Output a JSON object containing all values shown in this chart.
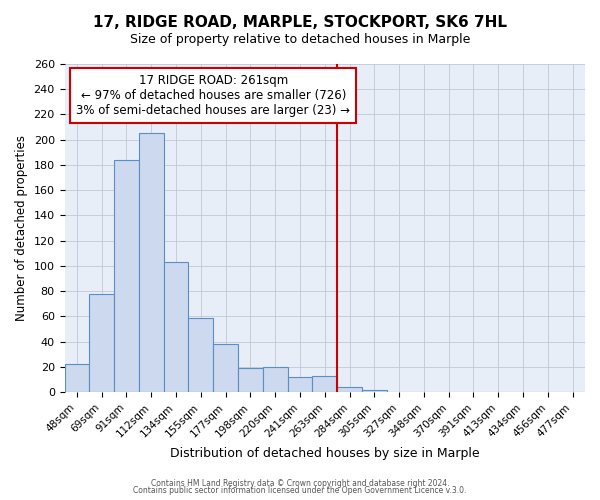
{
  "title": "17, RIDGE ROAD, MARPLE, STOCKPORT, SK6 7HL",
  "subtitle": "Size of property relative to detached houses in Marple",
  "xlabel": "Distribution of detached houses by size in Marple",
  "ylabel": "Number of detached properties",
  "footer_line1": "Contains HM Land Registry data © Crown copyright and database right 2024.",
  "footer_line2": "Contains public sector information licensed under the Open Government Licence v.3.0.",
  "annotation_line1": "17 RIDGE ROAD: 261sqm",
  "annotation_line2": "← 97% of detached houses are smaller (726)",
  "annotation_line3": "3% of semi-detached houses are larger (23) →",
  "bar_color": "#cdd9ee",
  "bar_edge_color": "#5b8ec4",
  "highlight_color": "#cc0000",
  "annotation_box_color": "#ffffff",
  "annotation_box_edge": "#cc0000",
  "categories": [
    "48sqm",
    "69sqm",
    "91sqm",
    "112sqm",
    "134sqm",
    "155sqm",
    "177sqm",
    "198sqm",
    "220sqm",
    "241sqm",
    "263sqm",
    "284sqm",
    "305sqm",
    "327sqm",
    "348sqm",
    "370sqm",
    "391sqm",
    "413sqm",
    "434sqm",
    "456sqm",
    "477sqm"
  ],
  "values": [
    22,
    78,
    184,
    205,
    103,
    59,
    38,
    19,
    20,
    12,
    13,
    4,
    2,
    0,
    0,
    0,
    0,
    0,
    0,
    0,
    0
  ],
  "highlight_index": 10,
  "ylim": [
    0,
    260
  ],
  "yticks": [
    0,
    20,
    40,
    60,
    80,
    100,
    120,
    140,
    160,
    180,
    200,
    220,
    240,
    260
  ],
  "plot_bg_color": "#e8eef8",
  "fig_bg_color": "#ffffff",
  "title_fontsize": 11,
  "subtitle_fontsize": 9,
  "annotation_fontsize": 8.5,
  "grid_color": "#c0c8d8"
}
